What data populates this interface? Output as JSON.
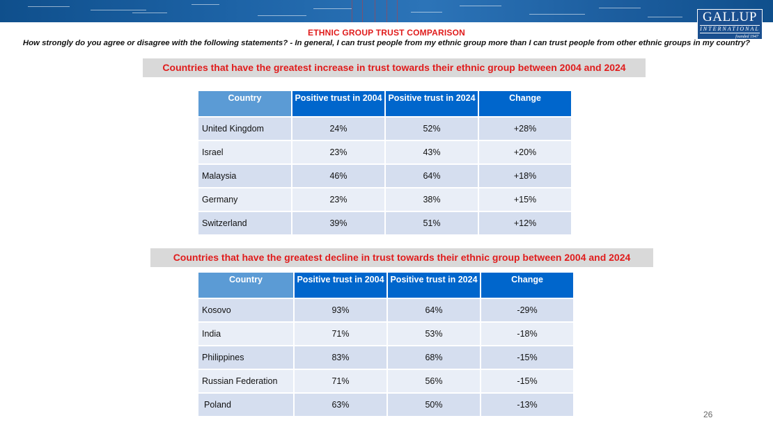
{
  "header": {
    "title": "ETHNIC GROUP TRUST COMPARISON",
    "question": "How strongly do you agree or disagree with the following statements? - In general, I can trust people from my ethnic group more than I can trust people from other ethnic groups in my country?"
  },
  "logo": {
    "name": "GALLUP",
    "tagline": "INTERNATIONAL",
    "founded": "founded 1947"
  },
  "colors": {
    "accent_red": "#e01c1c",
    "header_blue": "#0066cc",
    "header_light_blue": "#5b9bd5",
    "row_a": "#d5deef",
    "row_b": "#e9eef7",
    "section_gray": "#d9d9d9"
  },
  "increase": {
    "heading": "Countries that have the greatest increase in trust towards their ethnic group between 2004 and 2024",
    "columns": [
      "Country",
      "Positive trust in 2004",
      "Positive trust in 2024",
      "Change"
    ],
    "rows": [
      [
        "United Kingdom",
        "24%",
        "52%",
        "+28%"
      ],
      [
        "Israel",
        "23%",
        "43%",
        "+20%"
      ],
      [
        "Malaysia",
        "46%",
        "64%",
        "+18%"
      ],
      [
        "Germany",
        "23%",
        "38%",
        "+15%"
      ],
      [
        "Switzerland",
        "39%",
        "51%",
        "+12%"
      ]
    ]
  },
  "decline": {
    "heading": "Countries that have the greatest decline in trust towards their ethnic group between 2004 and 2024",
    "columns": [
      "Country",
      "Positive trust in 2004",
      "Positive trust in 2024",
      "Change"
    ],
    "rows": [
      [
        "Kosovo",
        "93%",
        "64%",
        "-29%"
      ],
      [
        "India",
        "71%",
        "53%",
        "-18%"
      ],
      [
        "Philippines",
        "83%",
        "68%",
        "-15%"
      ],
      [
        "Russian Federation",
        "71%",
        "56%",
        "-15%"
      ],
      [
        "Poland",
        "63%",
        "50%",
        "-13%"
      ]
    ]
  },
  "footer": {
    "page_number": "26"
  }
}
